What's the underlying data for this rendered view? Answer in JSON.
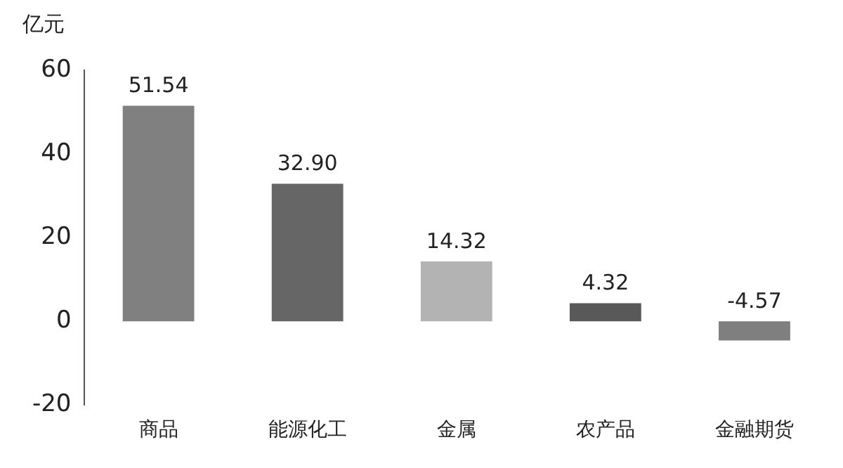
{
  "chart_data": {
    "type": "bar",
    "ylabel": "亿元",
    "categories": [
      "商品",
      "能源化工",
      "金属",
      "农产品",
      "金融期货"
    ],
    "values": [
      51.54,
      32.9,
      14.32,
      4.32,
      -4.57
    ],
    "colors": [
      "#808080",
      "#666666",
      "#b3b3b3",
      "#595959",
      "#7f7f7f"
    ],
    "value_labels": [
      "51.54",
      "32.90",
      "14.32",
      "4.32",
      "-4.57"
    ],
    "ylim": [
      -20,
      60
    ],
    "yticks": [
      -20,
      0,
      20,
      40,
      60
    ],
    "grid": false,
    "legend": false
  }
}
